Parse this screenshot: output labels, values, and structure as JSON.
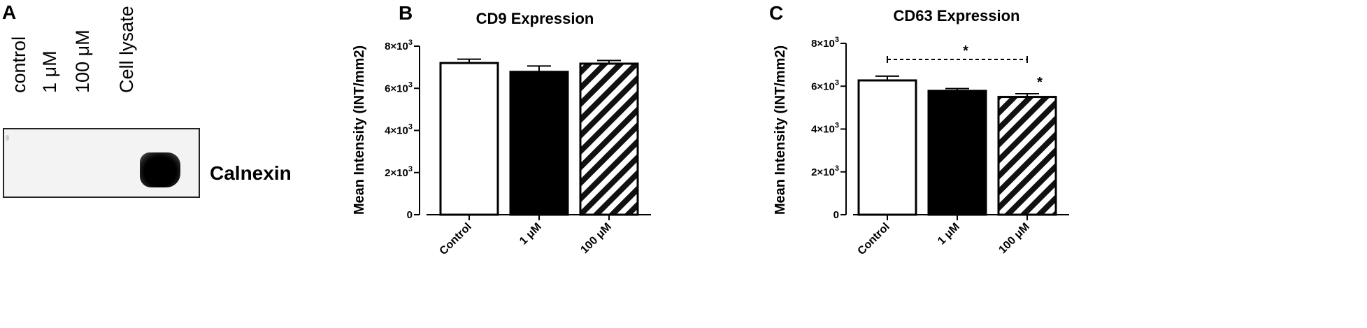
{
  "panel_a": {
    "letter": "A",
    "lanes": [
      "control",
      "1 μM",
      "100 μM",
      "Cell lysate"
    ],
    "band_label": "Calnexin"
  },
  "chart_data": [
    {
      "panel": "B",
      "type": "bar",
      "title": "CD9 Expression",
      "ylabel": "Mean Intensity (INT/mm2)",
      "xlabel": "",
      "categories": [
        "Control",
        "1 μM",
        "100 μM"
      ],
      "values": [
        7200,
        6780,
        7170
      ],
      "errors": [
        180,
        280,
        150
      ],
      "fills": [
        "white",
        "black",
        "hatched"
      ],
      "ylim": [
        0,
        8000
      ],
      "yticks": [
        {
          "v": 0,
          "b": "0",
          "e": ""
        },
        {
          "v": 2000,
          "b": "2×10",
          "e": "3"
        },
        {
          "v": 4000,
          "b": "4×10",
          "e": "3"
        },
        {
          "v": 6000,
          "b": "6×10",
          "e": "3"
        },
        {
          "v": 8000,
          "b": "8×10",
          "e": "3"
        }
      ],
      "grid": false,
      "significance": []
    },
    {
      "panel": "C",
      "type": "bar",
      "title": "CD63 Expression",
      "ylabel": "Mean Intensity (INT/mm2)",
      "xlabel": "",
      "categories": [
        "Control",
        "1 μM",
        "100 μM"
      ],
      "values": [
        6270,
        5780,
        5500
      ],
      "errors": [
        200,
        110,
        150
      ],
      "fills": [
        "white",
        "black",
        "hatched"
      ],
      "ylim": [
        0,
        8000
      ],
      "yticks": [
        {
          "v": 0,
          "b": "0",
          "e": ""
        },
        {
          "v": 2000,
          "b": "2×10",
          "e": "3"
        },
        {
          "v": 4000,
          "b": "4×10",
          "e": "3"
        },
        {
          "v": 6000,
          "b": "6×10",
          "e": "3"
        },
        {
          "v": 8000,
          "b": "8×10",
          "e": "3"
        }
      ],
      "grid": false,
      "significance": [
        {
          "from": 0,
          "to": 2,
          "label": "*",
          "level": 7250
        },
        {
          "at": 2,
          "label": "*"
        }
      ]
    }
  ]
}
